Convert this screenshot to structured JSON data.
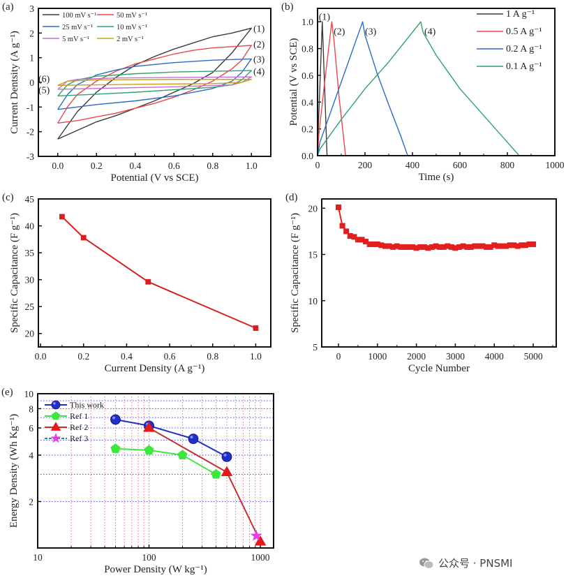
{
  "watermark": {
    "text": "公众号 · PNSMI",
    "icon": "wechat-icon"
  },
  "chart_data": [
    {
      "panel_label": "(a)",
      "type": "line",
      "xlabel": "Potential (V vs SCE)",
      "ylabel": "Current Dentsity (A g⁻¹)",
      "xlim": [
        -0.1,
        1.1
      ],
      "ylim": [
        -3,
        3
      ],
      "grid": false,
      "xticks": [
        0,
        0.2,
        0.4,
        0.6,
        0.8,
        1.0
      ],
      "xtick_labels": [
        "0.0",
        "0.2",
        "0.4",
        "0.6",
        "0.8",
        "1.0"
      ],
      "yticks": [
        -3,
        -2,
        -1,
        0,
        1,
        2,
        3
      ],
      "ytick_labels": [
        "-3",
        "-2",
        "-1",
        "0",
        "1",
        "2",
        "3"
      ],
      "legend": "top-left",
      "series": [
        {
          "name": "100 mV s⁻¹",
          "color": "#3a3a3a",
          "points": [
            [
              0,
              -2.3
            ],
            [
              0.1,
              -1.2
            ],
            [
              0.2,
              -0.4
            ],
            [
              0.3,
              0.2
            ],
            [
              0.4,
              0.7
            ],
            [
              0.5,
              1.05
            ],
            [
              0.6,
              1.35
            ],
            [
              0.7,
              1.6
            ],
            [
              0.8,
              1.85
            ],
            [
              0.9,
              2.0
            ],
            [
              1.0,
              2.2
            ],
            [
              0.9,
              1.2
            ],
            [
              0.8,
              0.4
            ],
            [
              0.7,
              -0.05
            ],
            [
              0.6,
              -0.4
            ],
            [
              0.5,
              -0.75
            ],
            [
              0.4,
              -1.05
            ],
            [
              0.3,
              -1.35
            ],
            [
              0.2,
              -1.6
            ],
            [
              0.1,
              -1.95
            ],
            [
              0,
              -2.3
            ]
          ]
        },
        {
          "name": "50 mV s⁻¹",
          "color": "#e8484a",
          "points": [
            [
              0,
              -1.65
            ],
            [
              0.05,
              -1.0
            ],
            [
              0.1,
              -0.5
            ],
            [
              0.2,
              0.05
            ],
            [
              0.3,
              0.45
            ],
            [
              0.4,
              0.75
            ],
            [
              0.5,
              0.95
            ],
            [
              0.6,
              1.15
            ],
            [
              0.7,
              1.3
            ],
            [
              0.8,
              1.4
            ],
            [
              0.9,
              1.45
            ],
            [
              1.0,
              1.5
            ],
            [
              0.95,
              0.9
            ],
            [
              0.9,
              0.55
            ],
            [
              0.8,
              0.05
            ],
            [
              0.7,
              -0.3
            ],
            [
              0.6,
              -0.6
            ],
            [
              0.5,
              -0.85
            ],
            [
              0.4,
              -1.05
            ],
            [
              0.3,
              -1.25
            ],
            [
              0.2,
              -1.4
            ],
            [
              0.1,
              -1.55
            ],
            [
              0,
              -1.65
            ]
          ]
        },
        {
          "name": "25 mV s⁻¹",
          "color": "#2b6cc4",
          "points": [
            [
              0,
              -1.1
            ],
            [
              0.05,
              -0.5
            ],
            [
              0.1,
              -0.1
            ],
            [
              0.2,
              0.3
            ],
            [
              0.3,
              0.5
            ],
            [
              0.4,
              0.65
            ],
            [
              0.6,
              0.8
            ],
            [
              0.8,
              0.9
            ],
            [
              1.0,
              0.95
            ],
            [
              0.95,
              0.4
            ],
            [
              0.9,
              0.05
            ],
            [
              0.8,
              -0.25
            ],
            [
              0.6,
              -0.55
            ],
            [
              0.4,
              -0.75
            ],
            [
              0.2,
              -0.9
            ],
            [
              0.1,
              -1.0
            ],
            [
              0,
              -1.1
            ]
          ]
        },
        {
          "name": "10 mV s⁻¹",
          "color": "#2ea36b",
          "points": [
            [
              0,
              -0.55
            ],
            [
              0.05,
              -0.1
            ],
            [
              0.1,
              0.1
            ],
            [
              0.2,
              0.25
            ],
            [
              0.4,
              0.35
            ],
            [
              0.6,
              0.42
            ],
            [
              0.8,
              0.45
            ],
            [
              1.0,
              0.48
            ],
            [
              0.95,
              0.1
            ],
            [
              0.9,
              -0.1
            ],
            [
              0.8,
              -0.2
            ],
            [
              0.6,
              -0.3
            ],
            [
              0.4,
              -0.4
            ],
            [
              0.2,
              -0.48
            ],
            [
              0,
              -0.55
            ]
          ]
        },
        {
          "name": "5 mV s⁻¹",
          "color": "#c56fd8",
          "points": [
            [
              0,
              -0.28
            ],
            [
              0.05,
              0.05
            ],
            [
              0.1,
              0.12
            ],
            [
              0.3,
              0.18
            ],
            [
              0.6,
              0.2
            ],
            [
              1.0,
              0.22
            ],
            [
              0.95,
              0.0
            ],
            [
              0.9,
              -0.1
            ],
            [
              0.6,
              -0.18
            ],
            [
              0.3,
              -0.23
            ],
            [
              0,
              -0.28
            ]
          ]
        },
        {
          "name": "2 mV s⁻¹",
          "color": "#c8a020",
          "points": [
            [
              0,
              -0.12
            ],
            [
              0.05,
              0.05
            ],
            [
              0.2,
              0.1
            ],
            [
              0.6,
              0.12
            ],
            [
              1.0,
              0.12
            ],
            [
              0.95,
              0.0
            ],
            [
              0.8,
              -0.05
            ],
            [
              0.4,
              -0.08
            ],
            [
              0,
              -0.12
            ]
          ]
        }
      ],
      "annotations": [
        {
          "text": "(1)",
          "x": 1.01,
          "y": 2.2
        },
        {
          "text": "(2)",
          "x": 1.01,
          "y": 1.55
        },
        {
          "text": "(3)",
          "x": 1.01,
          "y": 0.95
        },
        {
          "text": "(4)",
          "x": 1.01,
          "y": 0.45
        },
        {
          "text": "(6)",
          "x": -0.1,
          "y": 0.15
        },
        {
          "text": "(5)",
          "x": -0.1,
          "y": -0.3
        }
      ]
    },
    {
      "panel_label": "(b)",
      "type": "line",
      "xlabel": "Time (s)",
      "ylabel": "Potential (V vs SCE)",
      "xlim": [
        0,
        1000
      ],
      "ylim": [
        0,
        1.1
      ],
      "grid": false,
      "xticks": [
        0,
        200,
        400,
        600,
        800,
        1000
      ],
      "xtick_labels": [
        "0",
        "200",
        "400",
        "600",
        "800",
        "1000"
      ],
      "yticks": [
        0,
        0.2,
        0.4,
        0.6,
        0.8,
        1.0
      ],
      "ytick_labels": [
        "0.0",
        "0.2",
        "0.4",
        "0.6",
        "0.8",
        "1.0"
      ],
      "legend": "top-right",
      "series": [
        {
          "name": "1 A g⁻¹",
          "color": "#3a3a3a",
          "points": [
            [
              0,
              0
            ],
            [
              3,
              0.2
            ],
            [
              20,
              1.0
            ],
            [
              22,
              0.9
            ],
            [
              40,
              0
            ]
          ]
        },
        {
          "name": "0.5 A g⁻¹",
          "color": "#e8484a",
          "points": [
            [
              0,
              0
            ],
            [
              5,
              0.15
            ],
            [
              30,
              0.55
            ],
            [
              60,
              1.0
            ],
            [
              70,
              0.85
            ],
            [
              90,
              0.45
            ],
            [
              118,
              0
            ]
          ]
        },
        {
          "name": "0.2 A g⁻¹",
          "color": "#2b6cc4",
          "points": [
            [
              0,
              0
            ],
            [
              10,
              0.1
            ],
            [
              50,
              0.3
            ],
            [
              100,
              0.55
            ],
            [
              150,
              0.8
            ],
            [
              190,
              1.0
            ],
            [
              200,
              0.9
            ],
            [
              250,
              0.62
            ],
            [
              300,
              0.38
            ],
            [
              350,
              0.15
            ],
            [
              380,
              0
            ]
          ]
        },
        {
          "name": "0.1 A g⁻¹",
          "color": "#2ea36b",
          "points": [
            [
              0,
              0
            ],
            [
              10,
              0.05
            ],
            [
              100,
              0.27
            ],
            [
              200,
              0.5
            ],
            [
              300,
              0.7
            ],
            [
              435,
              1.0
            ],
            [
              445,
              0.92
            ],
            [
              500,
              0.75
            ],
            [
              600,
              0.5
            ],
            [
              700,
              0.3
            ],
            [
              800,
              0.1
            ],
            [
              850,
              0
            ]
          ]
        }
      ],
      "annotations": [
        {
          "text": "(1)",
          "x": 5,
          "y": 1.04
        },
        {
          "text": "(2)",
          "x": 68,
          "y": 0.93
        },
        {
          "text": "(3)",
          "x": 200,
          "y": 0.93
        },
        {
          "text": "(4)",
          "x": 450,
          "y": 0.93
        }
      ]
    },
    {
      "panel_label": "(c)",
      "type": "line",
      "xlabel": "Current Density (A g⁻¹)",
      "ylabel": "Specific Capacitance (F g⁻¹)",
      "xlim": [
        -0.01,
        1.07
      ],
      "ylim": [
        17.5,
        45
      ],
      "grid": false,
      "xticks": [
        0,
        0.2,
        0.4,
        0.6,
        0.8,
        1.0
      ],
      "xtick_labels": [
        "0.0",
        "0.2",
        "0.4",
        "0.6",
        "0.8",
        "1.0"
      ],
      "yticks": [
        20,
        25,
        30,
        35,
        40,
        45
      ],
      "ytick_labels": [
        "20",
        "25",
        "30",
        "35",
        "40",
        "45"
      ],
      "series": [
        {
          "color": "#d81f1f",
          "marker": "square",
          "x": [
            0.1,
            0.2,
            0.5,
            1.0
          ],
          "y": [
            41.7,
            37.8,
            29.6,
            21.0
          ]
        }
      ]
    },
    {
      "panel_label": "(d)",
      "type": "line",
      "xlabel": "Cycle Number",
      "ylabel": "Specific Capacitance (F g⁻¹)",
      "xlim": [
        -430,
        5590
      ],
      "ylim": [
        5,
        21
      ],
      "grid": false,
      "xticks": [
        0,
        1000,
        2000,
        3000,
        4000,
        5000
      ],
      "xtick_labels": [
        "0",
        "1000",
        "2000",
        "3000",
        "4000",
        "5000"
      ],
      "yticks": [
        5,
        10,
        15,
        20
      ],
      "ytick_labels": [
        "5",
        "10",
        "15",
        "20"
      ],
      "series": [
        {
          "color": "#e21f1f",
          "marker": "square",
          "x": [
            0,
            100,
            200,
            300,
            400,
            500,
            600,
            700,
            800,
            900,
            1000,
            1100,
            1200,
            1300,
            1400,
            1500,
            1600,
            1700,
            1800,
            1900,
            2000,
            2100,
            2200,
            2300,
            2400,
            2500,
            2600,
            2700,
            2800,
            2900,
            3000,
            3100,
            3200,
            3300,
            3400,
            3500,
            3600,
            3700,
            3800,
            3900,
            4000,
            4100,
            4200,
            4300,
            4400,
            4500,
            4600,
            4700,
            4800,
            4900,
            5000
          ],
          "y": [
            20.1,
            18.1,
            17.5,
            17.0,
            16.9,
            16.6,
            16.6,
            16.4,
            16.1,
            16.1,
            16.1,
            16.0,
            15.9,
            15.9,
            15.8,
            15.9,
            15.8,
            15.8,
            15.8,
            15.8,
            15.7,
            15.8,
            15.8,
            15.7,
            15.8,
            15.9,
            15.8,
            15.8,
            15.9,
            15.8,
            15.7,
            15.8,
            15.9,
            15.8,
            15.8,
            15.9,
            15.9,
            15.9,
            15.8,
            15.8,
            16.0,
            15.9,
            15.9,
            15.9,
            16.0,
            16.0,
            15.9,
            16.0,
            16.0,
            16.1,
            16.1
          ]
        }
      ]
    },
    {
      "panel_label": "(e)",
      "type": "line",
      "xlabel": "Power Density (W kg⁻¹)",
      "ylabel": "Energy Density (Wh Kg⁻¹)",
      "xscale": "log",
      "yscale": "log",
      "xlim": [
        10,
        1315
      ],
      "ylim": [
        1,
        10
      ],
      "grid": true,
      "legend": "top-left",
      "xticks": [
        10,
        100,
        1000
      ],
      "xtick_labels": [
        "10",
        "100",
        "1000"
      ],
      "yticks": [
        2,
        4,
        6,
        8,
        10
      ],
      "ytick_labels": [
        "2",
        "4",
        "6",
        "8",
        "10"
      ],
      "series": [
        {
          "name": "This work",
          "color": "#1f2fc8",
          "marker": "circle",
          "x": [
            50,
            100,
            250,
            500
          ],
          "y": [
            6.8,
            6.2,
            5.1,
            3.9
          ]
        },
        {
          "name": "Ref 1",
          "color": "#3ee83a",
          "marker": "pentagon",
          "x": [
            50,
            100,
            200,
            400
          ],
          "y": [
            4.4,
            4.3,
            4.0,
            3.0
          ]
        },
        {
          "name": "Ref 2",
          "color": "#e41a1a",
          "line_color": "#c83030",
          "marker": "triangle",
          "x": [
            100,
            500,
            1000
          ],
          "y": [
            6.0,
            3.1,
            1.1
          ]
        },
        {
          "name": "Ref 3",
          "color": "#e83ae8",
          "line_color": "#1a9a8a",
          "marker": "star",
          "x": [
            920
          ],
          "y": [
            1.2
          ]
        }
      ]
    }
  ]
}
